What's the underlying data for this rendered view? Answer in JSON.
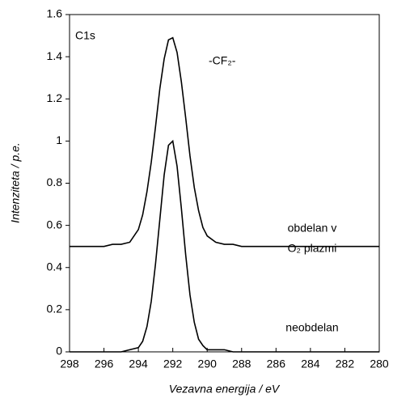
{
  "chart_data": {
    "type": "line",
    "x_label": "Vezavna energija / eV",
    "y_label": "Intenziteta / p.e.",
    "annotations": [
      "C1s",
      "-CF₂-",
      "obdelan v",
      "O₂ plazmi",
      "neobdelan"
    ],
    "x": [
      298,
      297.5,
      297,
      296.5,
      296,
      295.5,
      295,
      294.5,
      294,
      293.75,
      293.5,
      293.25,
      293,
      292.75,
      292.5,
      292.25,
      292,
      291.75,
      291.5,
      291.25,
      291,
      290.75,
      290.5,
      290.25,
      290,
      289.5,
      289,
      288.5,
      288,
      287.5,
      287,
      286.5,
      286,
      285.5,
      285,
      284.5,
      284,
      283.5,
      283,
      282.5,
      282,
      281.5,
      281,
      280.5,
      280
    ],
    "series": [
      {
        "color": "#000000",
        "values": [
          0,
          0,
          0,
          0,
          0,
          0,
          0,
          0.01,
          0.02,
          0.05,
          0.12,
          0.24,
          0.42,
          0.63,
          0.84,
          0.98,
          1.0,
          0.88,
          0.68,
          0.46,
          0.27,
          0.14,
          0.06,
          0.03,
          0.01,
          0.01,
          0.01,
          0,
          0,
          0,
          0,
          0,
          0,
          0,
          0,
          0,
          0,
          0,
          0,
          0,
          0,
          0,
          0,
          0,
          0
        ]
      },
      {
        "color": "#000000",
        "values": [
          0.5,
          0.5,
          0.5,
          0.5,
          0.5,
          0.51,
          0.51,
          0.52,
          0.58,
          0.65,
          0.76,
          0.9,
          1.07,
          1.25,
          1.39,
          1.48,
          1.49,
          1.42,
          1.28,
          1.11,
          0.93,
          0.78,
          0.67,
          0.59,
          0.55,
          0.52,
          0.51,
          0.51,
          0.5,
          0.5,
          0.5,
          0.5,
          0.5,
          0.5,
          0.5,
          0.5,
          0.5,
          0.5,
          0.5,
          0.5,
          0.5,
          0.5,
          0.5,
          0.5,
          0.5
        ]
      }
    ],
    "xlim": [
      298,
      280
    ],
    "xticks": [
      298,
      296,
      294,
      292,
      290,
      288,
      286,
      284,
      282,
      280
    ],
    "ylim": [
      0,
      1.6
    ],
    "yticks": [
      0,
      0.2,
      0.4,
      0.6,
      0.8,
      1,
      1.2,
      1.4,
      1.6
    ],
    "grid": false
  }
}
